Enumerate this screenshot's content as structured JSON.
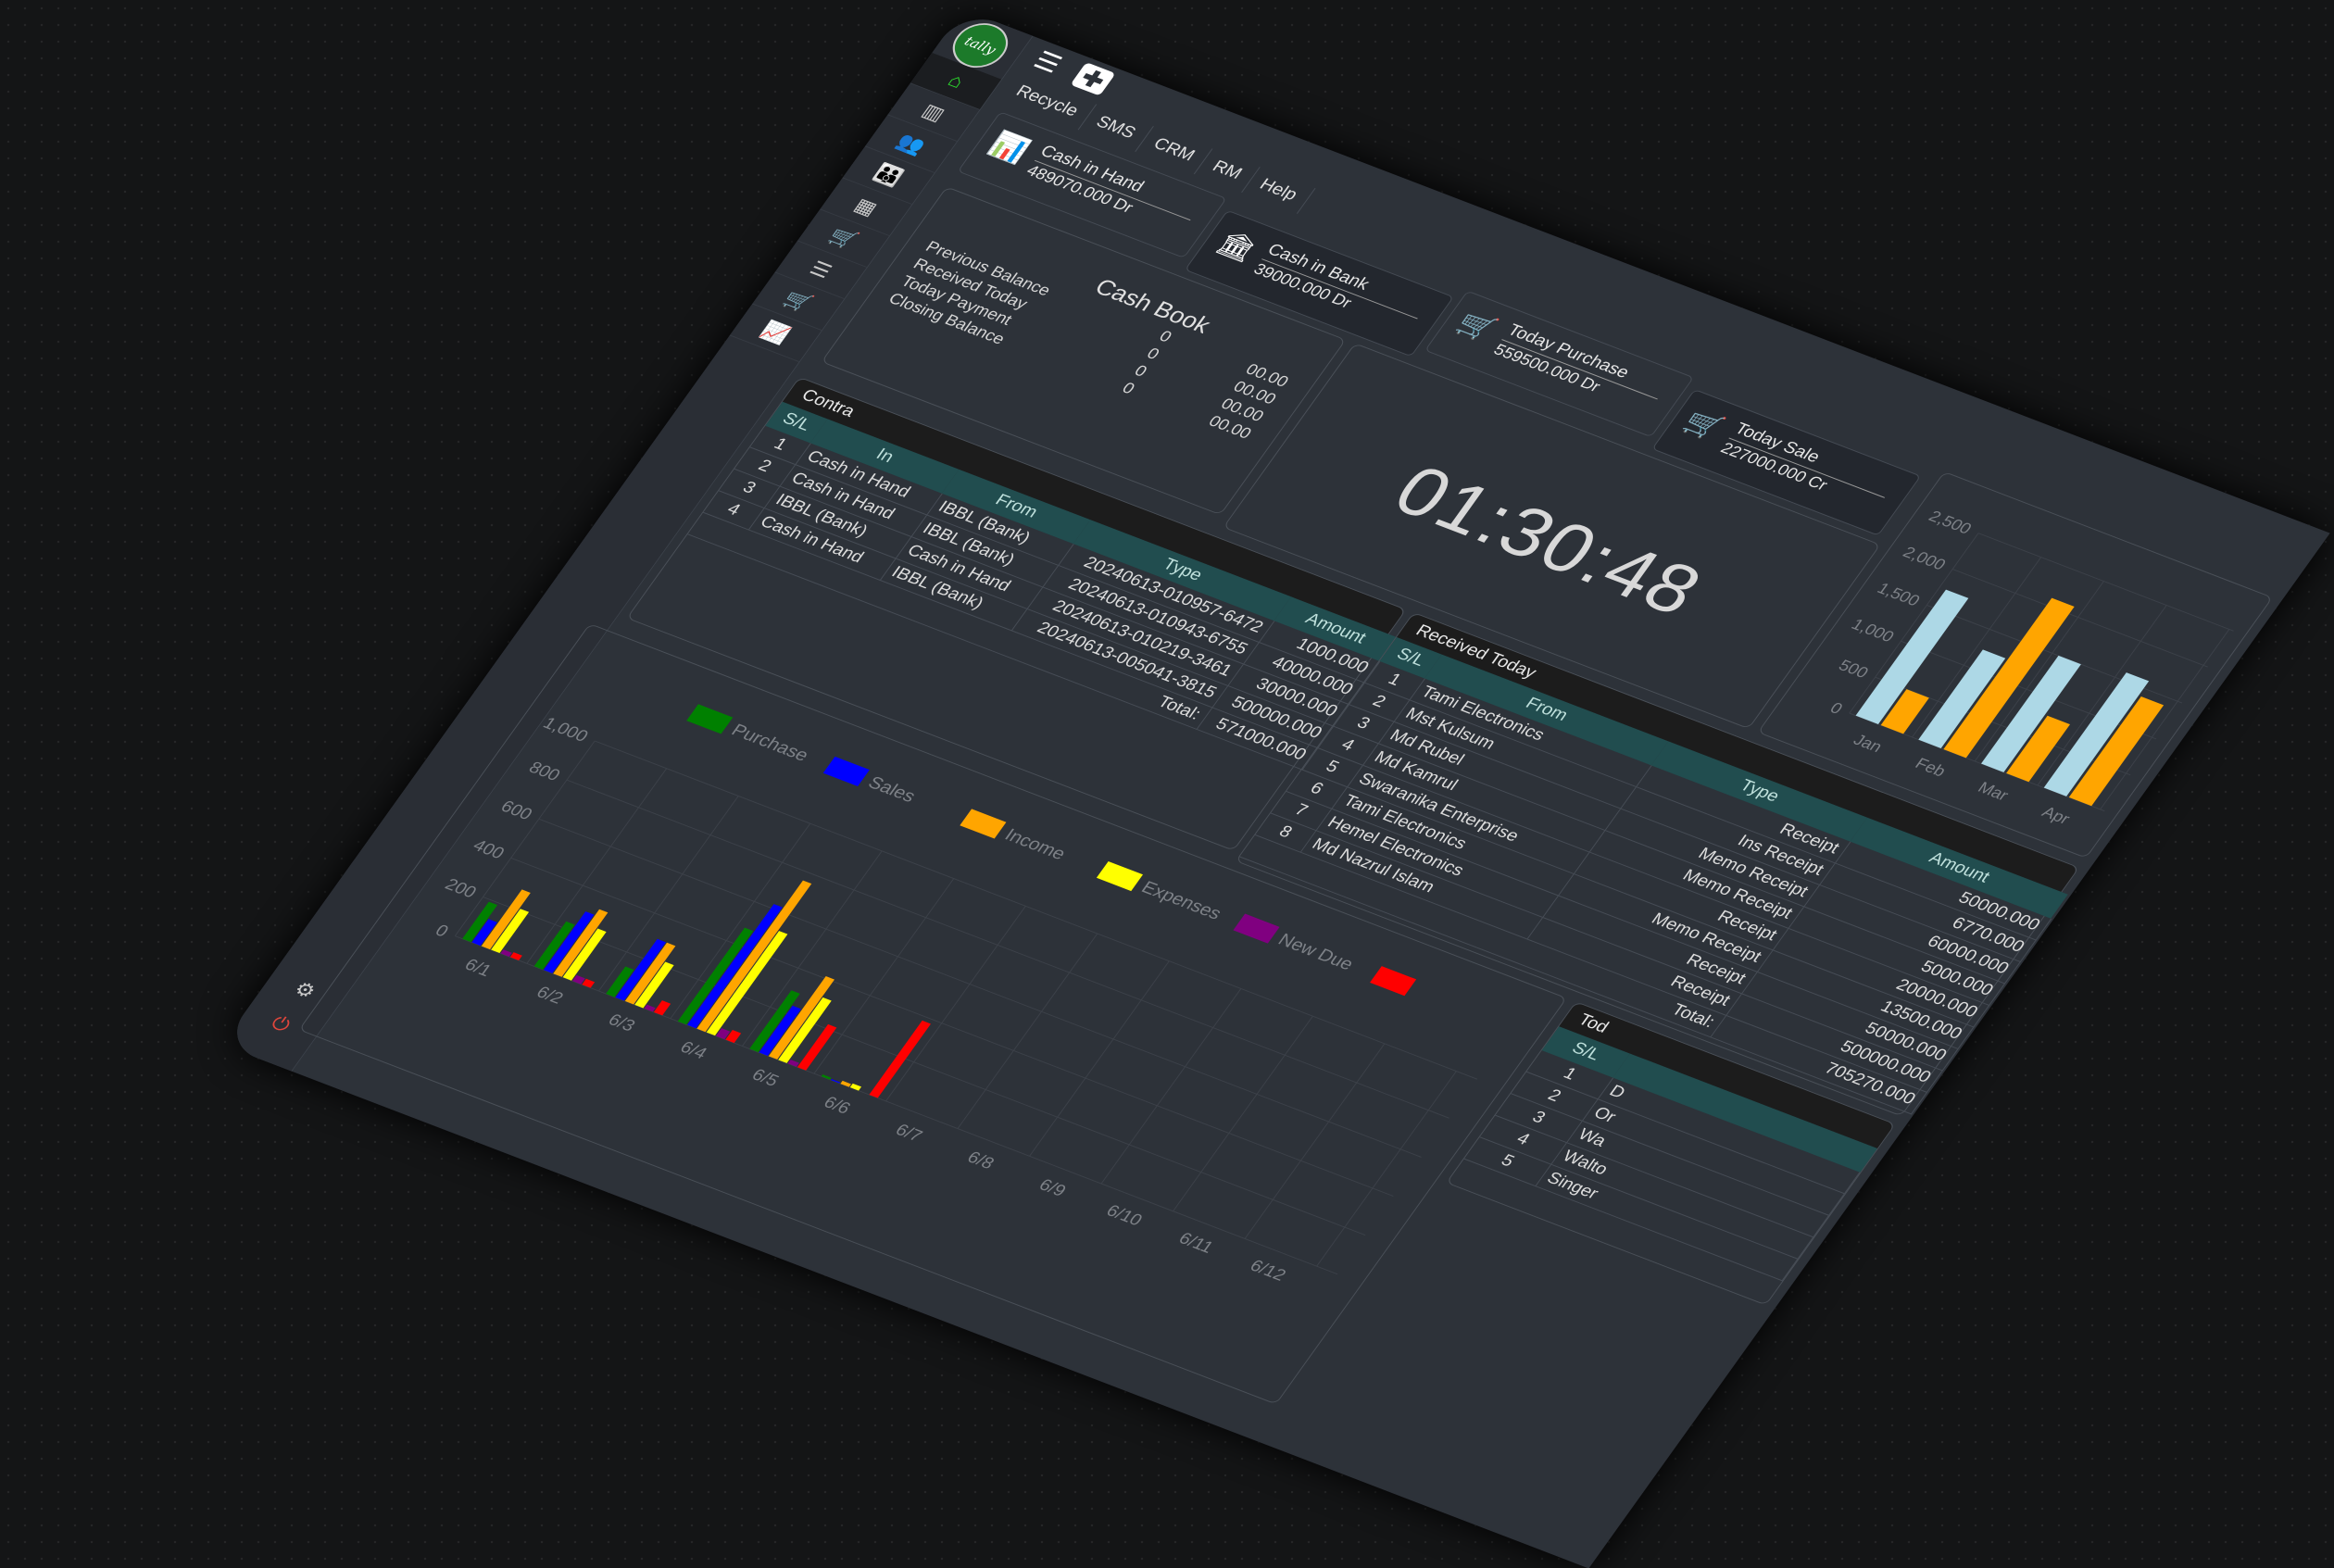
{
  "app": {
    "logo_text": "tally"
  },
  "sidebar": {
    "icons": [
      "home-icon",
      "bar-chart-icon",
      "users-icon",
      "group-icon",
      "calculator-icon",
      "cart-plus-icon",
      "list-icon",
      "cart-icon",
      "line-chart-icon"
    ],
    "bottom": [
      "gear-icon",
      "logout-icon"
    ]
  },
  "topbar": {
    "menu_icon": "hamburger-icon",
    "add_icon": "plus-square-icon"
  },
  "tabs": [
    "Recycle",
    "SMS",
    "CRM",
    "RM",
    "Help"
  ],
  "cards": [
    {
      "label": "Cash in Hand",
      "value": "489070.000 Dr",
      "icon": "bar-chart-icon"
    },
    {
      "label": "Cash in Bank",
      "value": "39000.000 Dr",
      "icon": "bank-icon"
    },
    {
      "label": "Today Purchase",
      "value": "559500.000 Dr",
      "icon": "cart-plus-icon"
    },
    {
      "label": "Today Sale",
      "value": "227000.000 Cr",
      "icon": "cart-icon"
    }
  ],
  "cashbook": {
    "title": "Cash Book",
    "rows": [
      {
        "label": "Previous Balance",
        "count": "0",
        "amount": "00.00"
      },
      {
        "label": "Received Today",
        "count": "0",
        "amount": "00.00"
      },
      {
        "label": "Today Payment",
        "count": "0",
        "amount": "00.00"
      },
      {
        "label": "Closing Balance",
        "count": "0",
        "amount": "00.00"
      }
    ]
  },
  "clock": "01:30:48",
  "contra": {
    "title": "Contra",
    "headers": [
      "S/L",
      "In",
      "From",
      "Type",
      "Amount"
    ],
    "rows": [
      [
        "1",
        "Cash in Hand",
        "IBBL (Bank)",
        "20240613-010957-6472",
        "1000.000"
      ],
      [
        "2",
        "Cash in Hand",
        "IBBL (Bank)",
        "20240613-010943-6755",
        "40000.000"
      ],
      [
        "3",
        "IBBL (Bank)",
        "Cash in Hand",
        "20240613-010219-3461",
        "30000.000"
      ],
      [
        "4",
        "Cash in Hand",
        "IBBL (Bank)",
        "20240613-005041-3815",
        "500000.000"
      ]
    ],
    "total_label": "Total:",
    "total": "571000.000"
  },
  "received": {
    "title": "Received Today",
    "headers": [
      "S/L",
      "From",
      "Type",
      "Amount"
    ],
    "rows": [
      [
        "1",
        "Tami Electronics",
        "Receipt",
        "50000.000"
      ],
      [
        "2",
        "Mst Kulsum",
        "Ins Receipt",
        "6770.000"
      ],
      [
        "3",
        "Md Rubel",
        "Memo Receipt",
        "60000.000"
      ],
      [
        "4",
        "Md Kamrul",
        "Memo Receipt",
        "5000.000"
      ],
      [
        "5",
        "Swaranika Enterprise",
        "Receipt",
        "20000.000"
      ],
      [
        "6",
        "Tami Electronics",
        "Memo Receipt",
        "13500.000"
      ],
      [
        "7",
        "Hemel Electronics",
        "Receipt",
        "50000.000"
      ],
      [
        "8",
        "Md Nazrul Islam",
        "Receipt",
        "500000.000"
      ]
    ],
    "total_label": "Total:",
    "total": "705270.000"
  },
  "today": {
    "title": "Tod",
    "headers": [
      "S/L"
    ],
    "rows": [
      [
        "1",
        "D"
      ],
      [
        "2",
        "Or"
      ],
      [
        "3",
        "Wa"
      ],
      [
        "4",
        "Walto"
      ],
      [
        "5",
        "Singer"
      ]
    ]
  },
  "chart_data": [
    {
      "type": "bar",
      "categories": [
        "6/1",
        "6/2",
        "6/3",
        "6/4",
        "6/5",
        "6/6",
        "6/7",
        "6/8",
        "6/9",
        "6/10",
        "6/11",
        "6/12"
      ],
      "ylim": [
        0,
        1000
      ],
      "yticks": [
        "0",
        "200",
        "400",
        "600",
        "800",
        "1,000"
      ],
      "grid": true,
      "legend": "inside-top-right",
      "series": [
        {
          "name": "Purchase",
          "color": "#008000",
          "values": [
            190,
            230,
            140,
            480,
            300,
            10,
            0,
            0,
            0,
            0,
            0,
            0
          ]
        },
        {
          "name": "Sales",
          "color": "#0000ff",
          "values": [
            120,
            300,
            300,
            620,
            240,
            5,
            0,
            0,
            0,
            0,
            0,
            0
          ]
        },
        {
          "name": "Income",
          "color": "#ffa500",
          "values": [
            290,
            330,
            300,
            760,
            410,
            15,
            0,
            0,
            0,
            0,
            0,
            0
          ]
        },
        {
          "name": "Expenses",
          "color": "#ffff00",
          "values": [
            210,
            250,
            220,
            520,
            320,
            20,
            0,
            0,
            0,
            0,
            0,
            0
          ]
        },
        {
          "name": "New Due",
          "color": "#800080",
          "values": [
            20,
            30,
            20,
            40,
            20,
            0,
            0,
            0,
            0,
            0,
            0,
            0
          ]
        },
        {
          "color": "#ff0000",
          "values": [
            25,
            30,
            60,
            50,
            220,
            380,
            0,
            0,
            0,
            0,
            0,
            0
          ]
        }
      ]
    },
    {
      "type": "bar",
      "categories": [
        "Jan",
        "Feb",
        "Mar",
        "Apr"
      ],
      "ylim": [
        0,
        2500
      ],
      "yticks": [
        "0",
        "500",
        "1,000",
        "1,500",
        "2,000",
        "2,500"
      ],
      "grid": true,
      "series": [
        {
          "color": "#add8e6",
          "values": [
            1750,
            1250,
            1500,
            1600
          ]
        },
        {
          "color": "#ffa500",
          "values": [
            500,
            2100,
            800,
            1400
          ]
        }
      ]
    }
  ]
}
